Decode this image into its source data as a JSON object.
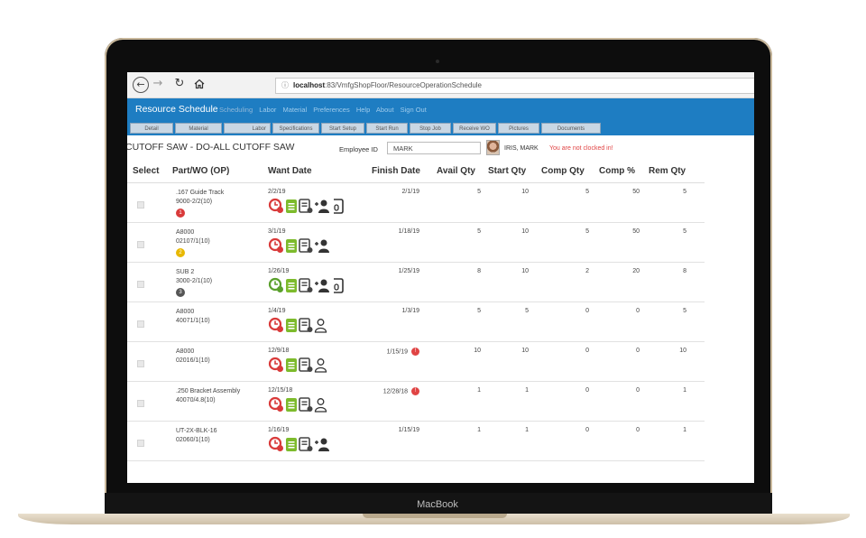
{
  "device": {
    "brand": "MacBook"
  },
  "browser": {
    "url_host": "localhost",
    "url_rest": ":83/VmfgShopFloor/ResourceOperationSchedule"
  },
  "app": {
    "title": "Resource Schedule",
    "menu": [
      "Scheduling",
      "Labor",
      "Material",
      "Preferences",
      "Help",
      "About",
      "Sign Out"
    ],
    "tabs": [
      "Detail",
      "Material",
      "Labor",
      "Specifications",
      "Start Setup",
      "Start Run",
      "Stop Job",
      "Receive WO",
      "Pictures",
      "Documents"
    ]
  },
  "resource": {
    "name": "CUTOFF SAW - DO-ALL CUTOFF SAW",
    "employee_label": "Employee ID",
    "employee_id": "MARK",
    "employee_name": "IRIS, MARK",
    "clock_message": "You are not clocked in!"
  },
  "table": {
    "headers": {
      "select": "Select",
      "part": "Part/WO (OP)",
      "want": "Want Date",
      "finish": "Finish Date",
      "avail": "Avail Qty",
      "start": "Start Qty",
      "comp": "Comp Qty",
      "comp_pct": "Comp %",
      "rem": "Rem Qty"
    },
    "rows": [
      {
        "part": ".167 Guide Track",
        "wo": "9000-2/2(10)",
        "priority": "1",
        "priority_color": "#d93a3a",
        "want": "2/2/19",
        "finish": "2/1/19",
        "late": false,
        "avail": "5",
        "start": "10",
        "comp": "5",
        "comp_pct": "50",
        "rem": "5",
        "clock_color": "#d93a3a",
        "person": "add",
        "doc": true
      },
      {
        "part": "A8000",
        "wo": "02107/1(10)",
        "priority": "2",
        "priority_color": "#e8b800",
        "want": "3/1/19",
        "finish": "1/18/19",
        "late": false,
        "avail": "5",
        "start": "10",
        "comp": "5",
        "comp_pct": "50",
        "rem": "5",
        "clock_color": "#d93a3a",
        "person": "add",
        "doc": false
      },
      {
        "part": "SUB 2",
        "wo": "3000-2/1(10)",
        "priority": "3",
        "priority_color": "#555555",
        "want": "1/26/19",
        "finish": "1/25/19",
        "late": false,
        "avail": "8",
        "start": "10",
        "comp": "2",
        "comp_pct": "20",
        "rem": "8",
        "clock_color": "#5aa02c",
        "person": "add",
        "doc": true
      },
      {
        "part": "A8000",
        "wo": "40071/1(10)",
        "priority": "",
        "priority_color": "",
        "want": "1/4/19",
        "finish": "1/3/19",
        "late": false,
        "avail": "5",
        "start": "5",
        "comp": "0",
        "comp_pct": "0",
        "rem": "5",
        "clock_color": "#d93a3a",
        "person": "outline",
        "doc": false
      },
      {
        "part": "A8000",
        "wo": "02016/1(10)",
        "priority": "",
        "priority_color": "",
        "want": "12/9/18",
        "finish": "1/15/19",
        "late": true,
        "avail": "10",
        "start": "10",
        "comp": "0",
        "comp_pct": "0",
        "rem": "10",
        "clock_color": "#d93a3a",
        "person": "outline",
        "doc": false
      },
      {
        "part": ".250 Bracket Assembly",
        "wo": "40070/4.8(10)",
        "priority": "",
        "priority_color": "",
        "want": "12/15/18",
        "finish": "12/28/18",
        "late": true,
        "avail": "1",
        "start": "1",
        "comp": "0",
        "comp_pct": "0",
        "rem": "1",
        "clock_color": "#d93a3a",
        "person": "outline",
        "doc": false
      },
      {
        "part": "UT-2X-BLK-16",
        "wo": "02060/1(10)",
        "priority": "",
        "priority_color": "",
        "want": "1/16/19",
        "finish": "1/15/19",
        "late": false,
        "avail": "1",
        "start": "1",
        "comp": "0",
        "comp_pct": "0",
        "rem": "1",
        "clock_color": "#d93a3a",
        "person": "add",
        "doc": false
      }
    ],
    "late_alert": "!",
    "icons": [
      "clock-icon",
      "spec-sheet-icon",
      "labor-ticket-icon",
      "employee-icon",
      "document-icon"
    ]
  }
}
